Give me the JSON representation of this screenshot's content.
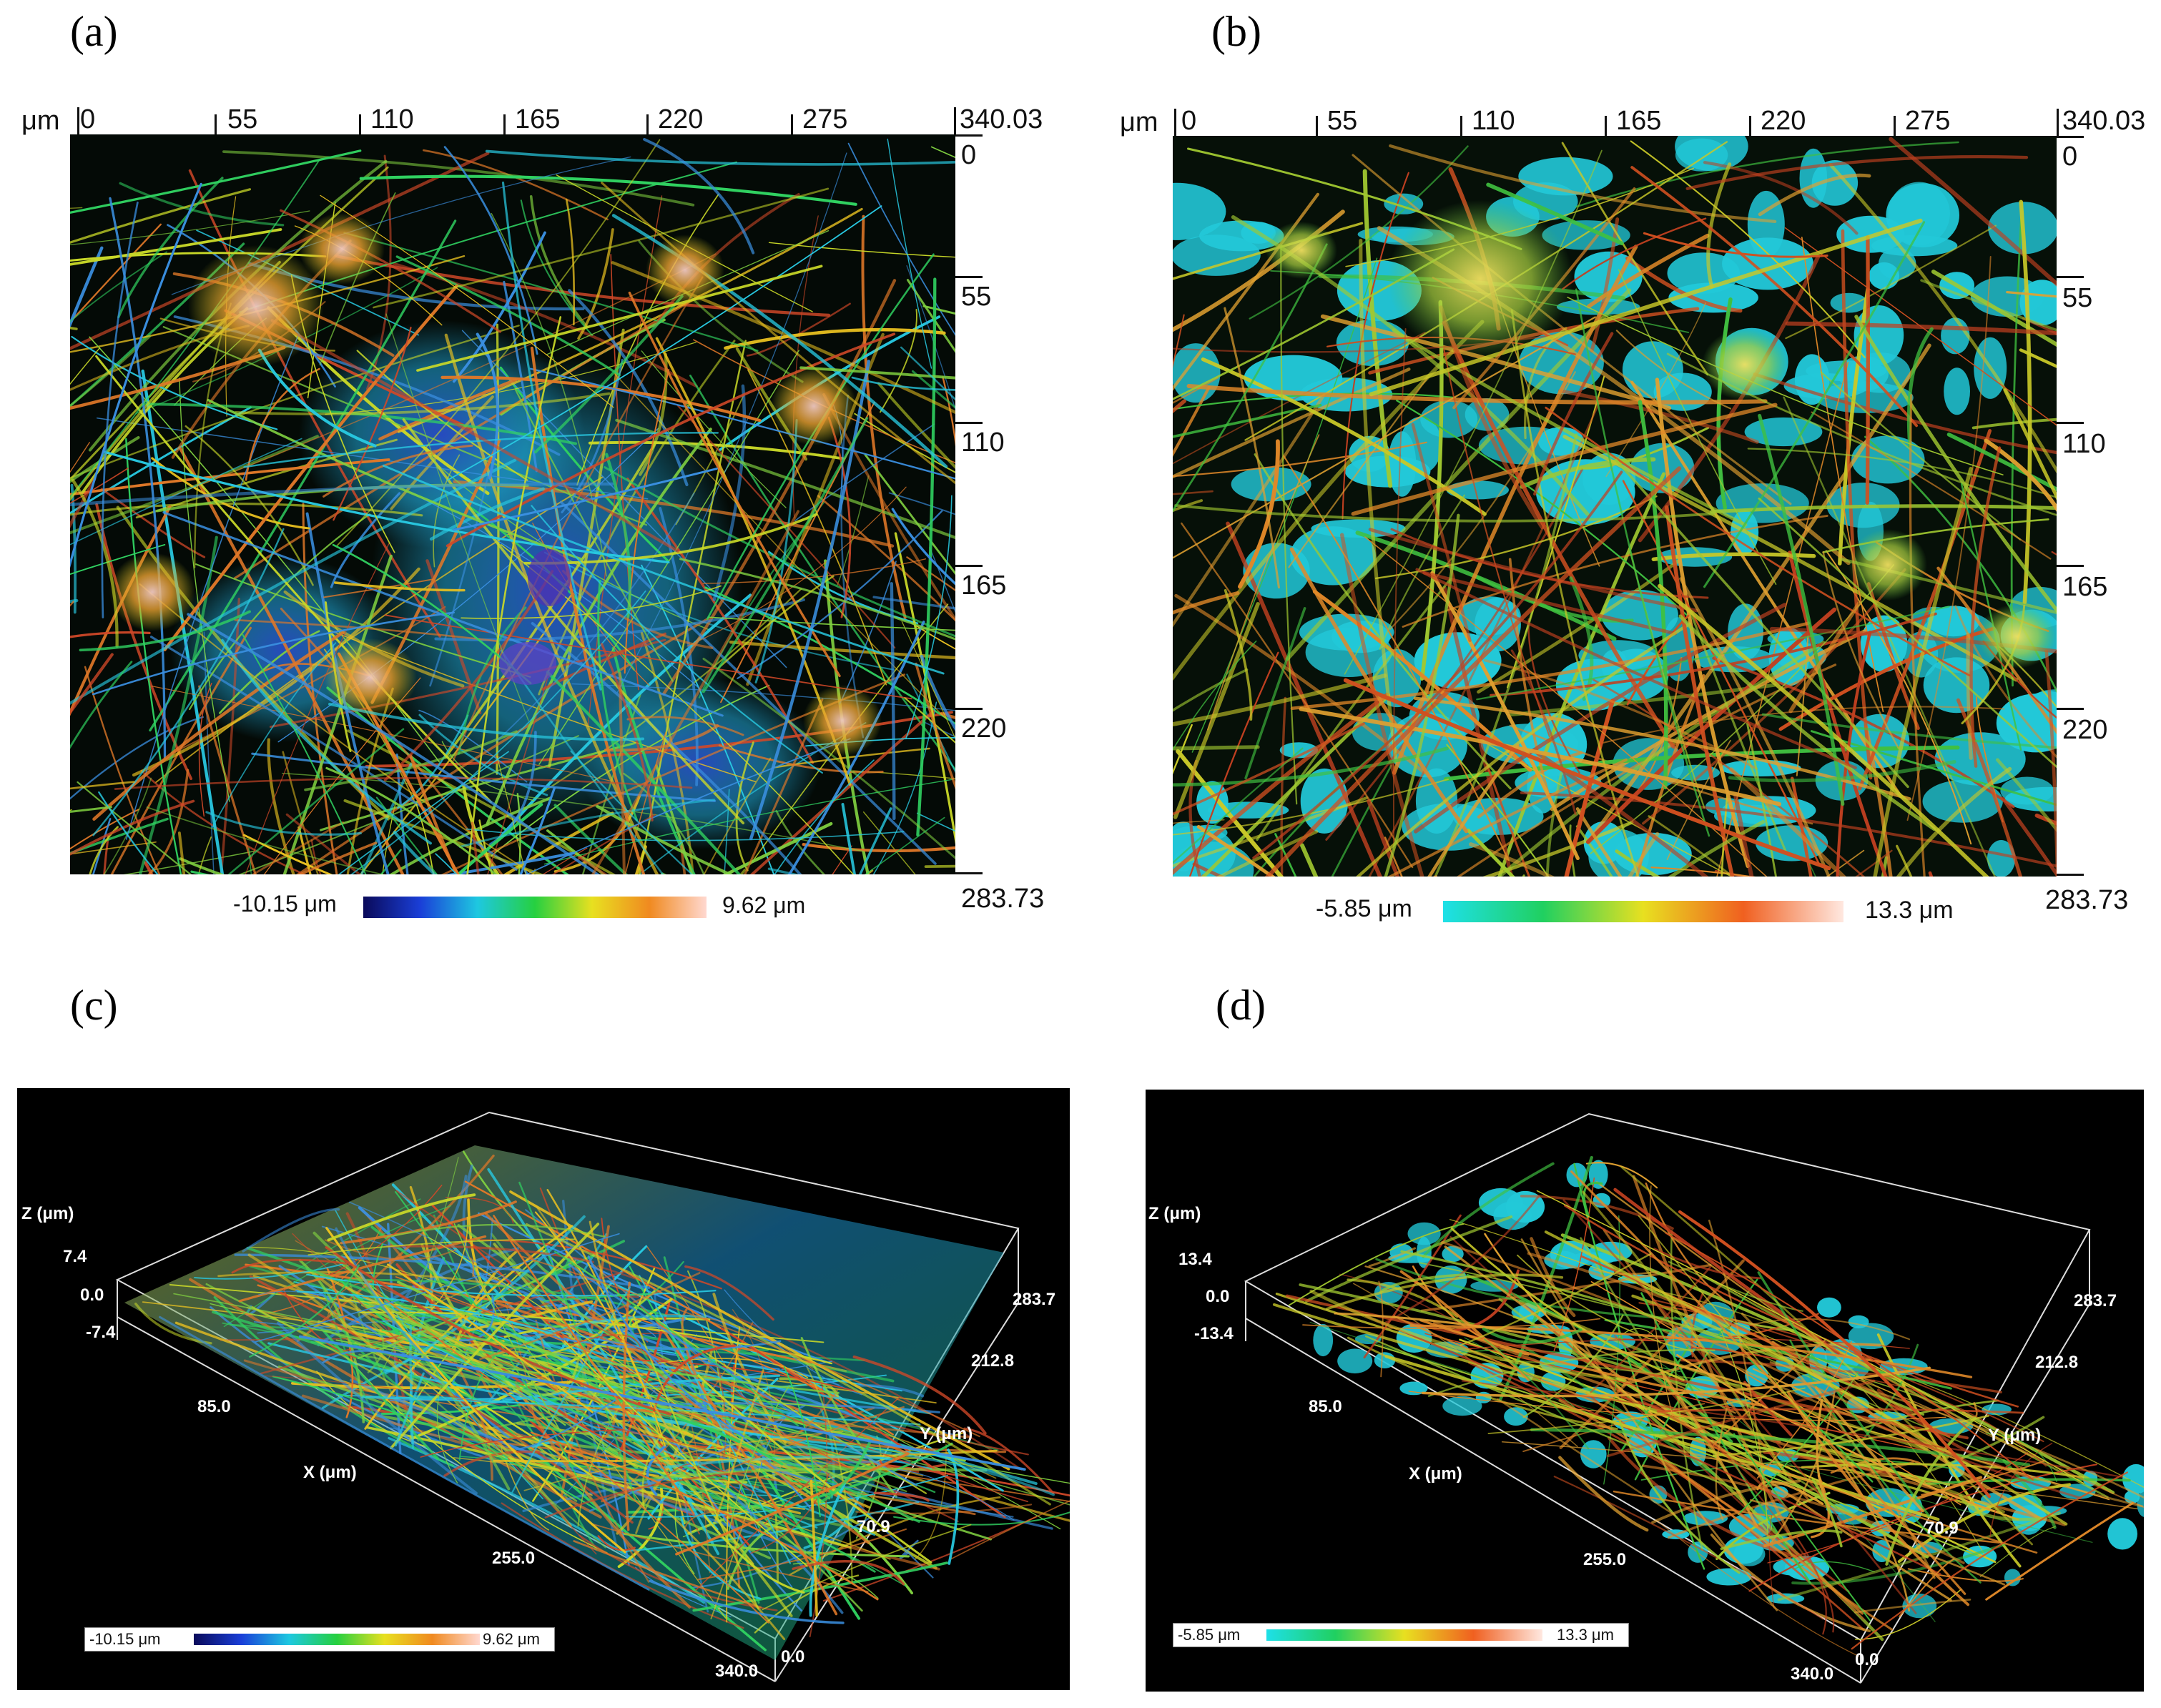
{
  "panels": {
    "a": {
      "letter": "(a)",
      "unit": "μm",
      "x_ticks": [
        "0",
        "55",
        "110",
        "165",
        "220",
        "275",
        "340.03"
      ],
      "y_ticks": [
        "0",
        "55",
        "110",
        "165",
        "220",
        "283.73"
      ],
      "scale_min": "-10.15 μm",
      "scale_max": "9.62 μm",
      "colors": [
        "#0a0a5a",
        "#1a3fd8",
        "#1ec8e0",
        "#26d040",
        "#e8e020",
        "#f08a20",
        "#ffd8d0"
      ]
    },
    "b": {
      "letter": "(b)",
      "unit": "μm",
      "x_ticks": [
        "0",
        "55",
        "110",
        "165",
        "220",
        "275",
        "340.03"
      ],
      "y_ticks": [
        "0",
        "55",
        "110",
        "165",
        "220",
        "283.73"
      ],
      "scale_min": "-5.85 μm",
      "scale_max": "13.3 μm",
      "colors": [
        "#1ee0e8",
        "#20d060",
        "#e8e020",
        "#f06020",
        "#ffe8e0"
      ]
    },
    "c": {
      "letter": "(c)",
      "z_label": "Z (μm)",
      "z_ticks": [
        "7.4",
        "0.0",
        "-7.4"
      ],
      "x_label": "X (μm)",
      "x_ticks": [
        "85.0",
        "255.0",
        "340.0"
      ],
      "y_label": "Y (μm)",
      "y_ticks": [
        "283.7",
        "212.8",
        "70.9",
        "0.0"
      ],
      "scale_min": "-10.15 μm",
      "scale_max": "9.62 μm"
    },
    "d": {
      "letter": "(d)",
      "z_label": "Z (μm)",
      "z_ticks": [
        "13.4",
        "0.0",
        "-13.4"
      ],
      "x_label": "X (μm)",
      "x_ticks": [
        "85.0",
        "255.0",
        "340.0"
      ],
      "y_label": "Y (μm)",
      "y_ticks": [
        "283.7",
        "212.8",
        "70.9",
        "0.0"
      ],
      "scale_min": "-5.85 μm",
      "scale_max": "13.3 μm"
    }
  }
}
